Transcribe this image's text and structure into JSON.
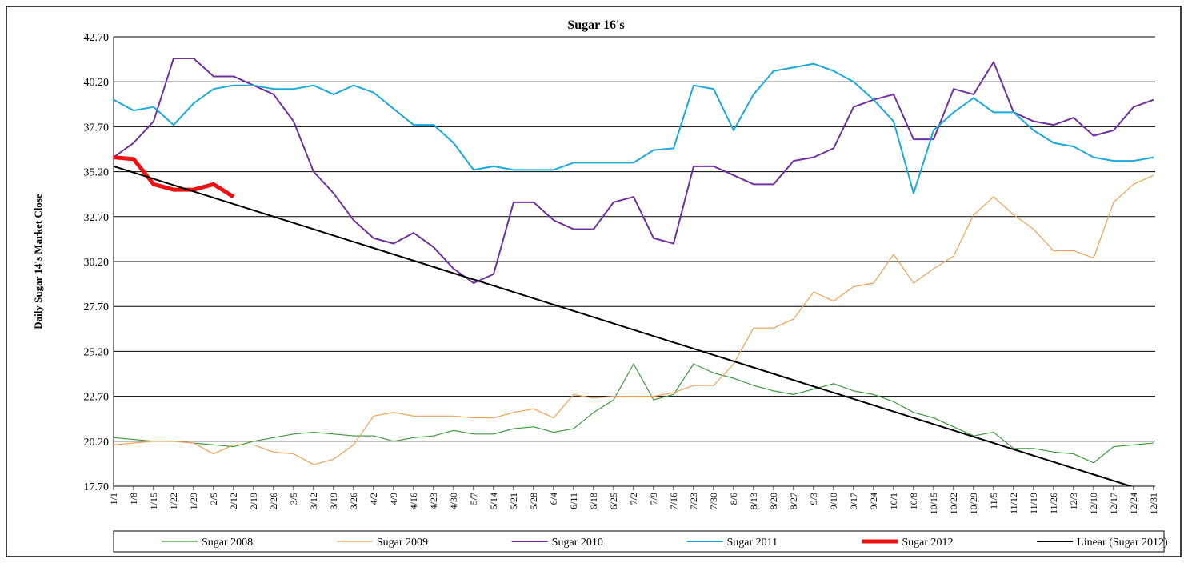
{
  "chart_data": {
    "type": "line",
    "title": "Sugar 16's",
    "y_label": "Daily Sugar 14's Market Close",
    "categories": [
      "1/1",
      "1/8",
      "1/15",
      "1/22",
      "1/29",
      "2/5",
      "2/12",
      "2/19",
      "2/26",
      "3/5",
      "3/12",
      "3/19",
      "3/26",
      "4/2",
      "4/9",
      "4/16",
      "4/23",
      "4/30",
      "5/7",
      "5/14",
      "5/21",
      "5/28",
      "6/4",
      "6/11",
      "6/18",
      "6/25",
      "7/2",
      "7/9",
      "7/16",
      "7/23",
      "7/30",
      "8/6",
      "8/13",
      "8/20",
      "8/27",
      "9/3",
      "9/10",
      "9/17",
      "9/24",
      "10/1",
      "10/8",
      "10/15",
      "10/22",
      "10/29",
      "11/5",
      "11/12",
      "11/19",
      "11/26",
      "12/3",
      "12/10",
      "12/17",
      "12/24",
      "12/31"
    ],
    "ylim": [
      17.7,
      42.7
    ],
    "yticks": [
      {
        "value": 17.7,
        "label": "17.70"
      },
      {
        "value": 20.2,
        "label": "20.20"
      },
      {
        "value": 22.7,
        "label": "22.70"
      },
      {
        "value": 25.2,
        "label": "25.20"
      },
      {
        "value": 27.7,
        "label": "27.70"
      },
      {
        "value": 30.2,
        "label": "30.20"
      },
      {
        "value": 32.7,
        "label": "32.70"
      },
      {
        "value": 35.2,
        "label": "35.20"
      },
      {
        "value": 37.7,
        "label": "37.70"
      },
      {
        "value": 40.2,
        "label": "40.20"
      },
      {
        "value": 42.7,
        "label": "42.70"
      }
    ],
    "grid": true,
    "legend": "bottom",
    "series": [
      {
        "name": "Sugar 2008",
        "color": "#3a9a3a",
        "width": 1.2,
        "values": [
          20.4,
          20.3,
          20.2,
          20.2,
          20.1,
          20.0,
          19.9,
          20.2,
          20.4,
          20.6,
          20.7,
          20.6,
          20.5,
          20.5,
          20.2,
          20.4,
          20.5,
          20.8,
          20.6,
          20.6,
          20.9,
          21.0,
          20.7,
          20.9,
          21.8,
          22.5,
          24.5,
          22.5,
          22.8,
          24.5,
          24.0,
          23.7,
          23.3,
          23.0,
          22.8,
          23.1,
          23.4,
          23.0,
          22.8,
          22.4,
          21.8,
          21.5,
          21.0,
          20.5,
          20.7,
          19.8,
          19.8,
          19.6,
          19.5,
          19.0,
          19.9,
          20.0,
          20.1
        ]
      },
      {
        "name": "Sugar 2009",
        "color": "#f0a050",
        "width": 1.2,
        "values": [
          20.0,
          20.1,
          20.2,
          20.2,
          20.1,
          19.5,
          20.0,
          20.0,
          19.6,
          19.5,
          18.9,
          19.2,
          20.0,
          21.6,
          21.8,
          21.6,
          21.6,
          21.6,
          21.5,
          21.5,
          21.8,
          22.0,
          21.5,
          22.8,
          22.6,
          22.7,
          22.7,
          22.7,
          22.9,
          23.3,
          23.3,
          24.5,
          26.5,
          26.5,
          27.0,
          28.5,
          28.0,
          28.8,
          29.0,
          30.6,
          29.0,
          29.8,
          30.5,
          32.8,
          33.8,
          32.8,
          32.0,
          30.8,
          30.8,
          30.4,
          33.5,
          34.5,
          35.0
        ]
      },
      {
        "name": "Sugar 2010",
        "color": "#7030a0",
        "width": 2,
        "values": [
          36.0,
          36.8,
          38.0,
          41.5,
          41.5,
          40.5,
          40.5,
          40.0,
          39.5,
          38.0,
          35.2,
          34.0,
          32.5,
          31.5,
          31.2,
          31.8,
          31.0,
          29.8,
          29.0,
          29.5,
          33.5,
          33.5,
          32.5,
          32.0,
          32.0,
          33.5,
          33.8,
          31.5,
          31.2,
          35.5,
          35.5,
          35.0,
          34.5,
          34.5,
          35.8,
          36.0,
          36.5,
          38.8,
          39.2,
          39.5,
          37.0,
          37.0,
          39.8,
          39.5,
          41.3,
          38.5,
          38.0,
          37.8,
          38.2,
          37.2,
          37.5,
          38.8,
          39.2
        ]
      },
      {
        "name": "Sugar 2011",
        "color": "#1ba8dc",
        "width": 2,
        "values": [
          39.2,
          38.6,
          38.8,
          37.8,
          39.0,
          39.8,
          40.0,
          40.0,
          39.8,
          39.8,
          40.0,
          39.5,
          40.0,
          39.6,
          38.7,
          37.8,
          37.8,
          36.8,
          35.3,
          35.5,
          35.3,
          35.3,
          35.3,
          35.7,
          35.7,
          35.7,
          35.7,
          36.4,
          36.5,
          40.0,
          39.8,
          37.5,
          39.5,
          40.8,
          41.0,
          41.2,
          40.8,
          40.2,
          39.2,
          38.0,
          34.0,
          37.5,
          38.5,
          39.3,
          38.5,
          38.5,
          37.5,
          36.8,
          36.6,
          36.0,
          35.8,
          35.8,
          36.0
        ]
      },
      {
        "name": "Sugar 2012",
        "color": "#ee1111",
        "width": 5,
        "values": [
          36.0,
          35.9,
          34.5,
          34.2,
          34.2,
          34.5,
          33.8,
          null,
          null,
          null,
          null,
          null,
          null,
          null,
          null,
          null,
          null,
          null,
          null,
          null,
          null,
          null,
          null,
          null,
          null,
          null,
          null,
          null,
          null,
          null,
          null,
          null,
          null,
          null,
          null,
          null,
          null,
          null,
          null,
          null,
          null,
          null,
          null,
          null,
          null,
          null,
          null,
          null,
          null,
          null,
          null,
          null,
          null
        ]
      },
      {
        "name": "Linear (Sugar 2012)",
        "color": "#000000",
        "width": 2,
        "values": [
          35.5,
          35.15,
          34.8,
          34.45,
          34.1,
          33.75,
          33.4,
          33.05,
          32.7,
          32.35,
          32.0,
          31.65,
          31.3,
          30.95,
          30.6,
          30.25,
          29.9,
          29.55,
          29.2,
          28.85,
          28.5,
          28.15,
          27.8,
          27.45,
          27.1,
          26.75,
          26.4,
          26.05,
          25.7,
          25.35,
          25.0,
          24.65,
          24.3,
          23.95,
          23.6,
          23.25,
          22.9,
          22.55,
          22.2,
          21.85,
          21.5,
          21.15,
          20.8,
          20.45,
          20.1,
          19.75,
          19.4,
          19.05,
          18.7,
          18.35,
          18.0,
          17.65,
          17.3
        ]
      }
    ]
  }
}
